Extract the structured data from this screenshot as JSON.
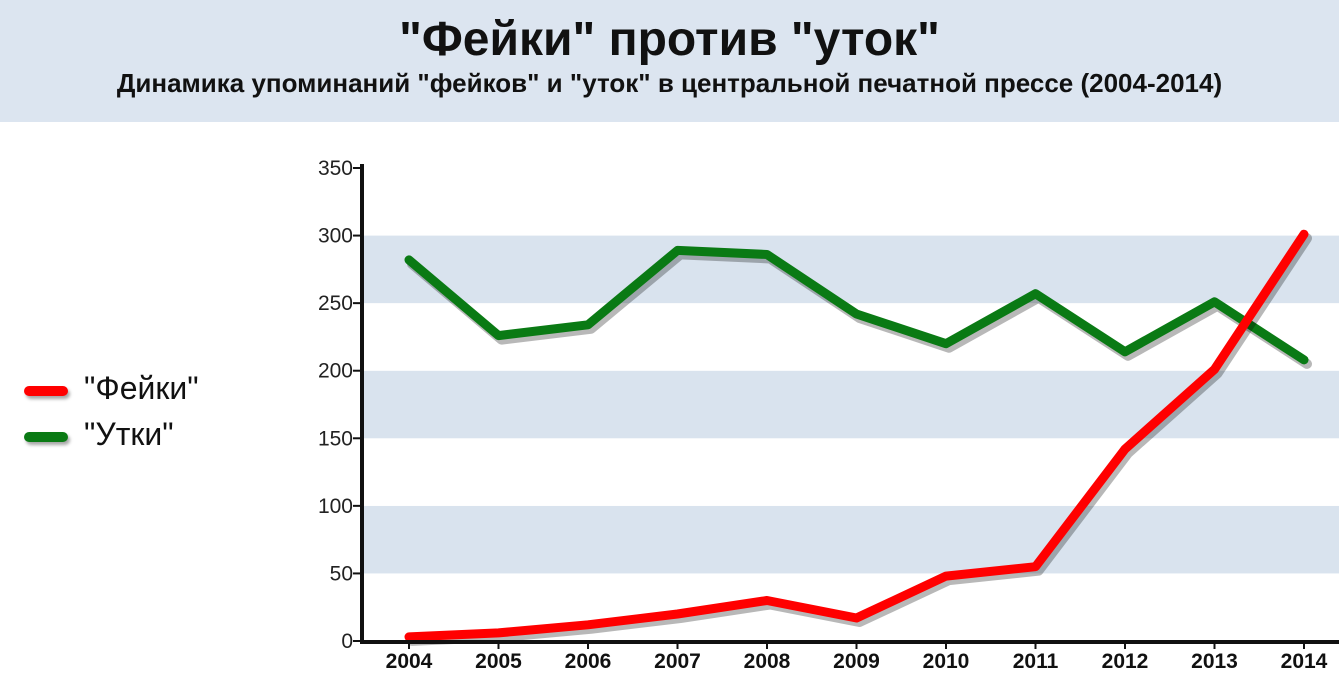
{
  "header": {
    "title": "\"Фейки\" против \"уток\"",
    "subtitle": "Динамика упоминаний \"фейков\" и \"уток\" в центральной печатной прессе (2004-2014)"
  },
  "chart_data": {
    "type": "line",
    "title": "\"Фейки\" против \"уток\"",
    "subtitle": "Динамика упоминаний \"фейков\" и \"уток\" в центральной печатной прессе (2004-2014)",
    "xlabel": "",
    "ylabel": "",
    "categories": [
      "2004",
      "2005",
      "2006",
      "2007",
      "2008",
      "2009",
      "2010",
      "2011",
      "2012",
      "2013",
      "2014"
    ],
    "ylim": [
      0,
      350
    ],
    "yticks": [
      0,
      50,
      100,
      150,
      200,
      250,
      300,
      350
    ],
    "grid": "alternating horizontal bands",
    "legend_position": "left",
    "series": [
      {
        "name": "\"Фейки\"",
        "color": "#ff0000",
        "values": [
          3,
          6,
          12,
          20,
          30,
          17,
          48,
          55,
          142,
          201,
          301
        ]
      },
      {
        "name": "\"Утки\"",
        "color": "#0a7a14",
        "values": [
          282,
          226,
          234,
          289,
          286,
          242,
          220,
          257,
          214,
          251,
          208
        ]
      }
    ]
  }
}
